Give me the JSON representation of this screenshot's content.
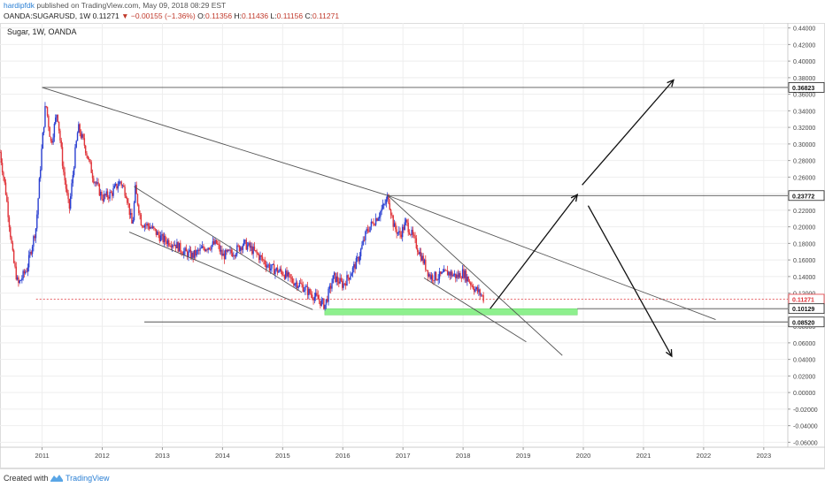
{
  "header": {
    "author": "hardipfdk",
    "published": "published on TradingView.com, May 09, 2018 08:29 EST",
    "symbol": "OANDA:SUGARUSD, 1W",
    "last": "0.11271",
    "change": "−0.00155 (−1.36%)",
    "o_label": "O:",
    "o_value": "0.11356",
    "h_label": "H:",
    "h_value": "0.11436",
    "l_label": "L:",
    "l_value": "0.11156",
    "c_label": "C:",
    "c_value": "0.11271"
  },
  "footer": {
    "created": "Created with",
    "brand": "TradingView"
  },
  "colors": {
    "up": "#2a3fd1",
    "down": "#e0343a",
    "grid": "#eeeeee",
    "zone": "#8ef08e",
    "price_line": "#e0343a"
  },
  "chart_data": {
    "type": "candlestick",
    "title": "Sugar, 1W, OANDA",
    "x_ticks": [
      "2011",
      "2012",
      "2013",
      "2014",
      "2015",
      "2016",
      "2017",
      "2018",
      "2019",
      "2020",
      "2021",
      "2022",
      "2023"
    ],
    "y_ticks": [
      "0.44000",
      "0.42000",
      "0.40000",
      "0.38000",
      "0.36000",
      "0.34000",
      "0.32000",
      "0.30000",
      "0.28000",
      "0.26000",
      "0.24000",
      "0.22000",
      "0.20000",
      "0.18000",
      "0.16000",
      "0.14000",
      "0.12000",
      "0.10000",
      "0.08000",
      "0.06000",
      "0.04000",
      "0.02000",
      "0.00000",
      "-0.02000",
      "-0.04000",
      "-0.06000"
    ],
    "ylim": [
      -0.066,
      0.446
    ],
    "xlim": [
      2010.3,
      2023.4
    ],
    "price_labels": [
      "0.36823",
      "0.23772",
      "0.11271",
      "0.10129",
      "0.08520"
    ],
    "price_levels": [
      0.36823,
      0.23772,
      0.11271,
      0.10129,
      0.0852
    ],
    "current_price": 0.11271,
    "price_path": [
      [
        2010.3,
        0.29
      ],
      [
        2010.4,
        0.24
      ],
      [
        2010.52,
        0.16
      ],
      [
        2010.6,
        0.13
      ],
      [
        2010.75,
        0.15
      ],
      [
        2010.9,
        0.2
      ],
      [
        2011.0,
        0.3
      ],
      [
        2011.06,
        0.35
      ],
      [
        2011.15,
        0.3
      ],
      [
        2011.25,
        0.34
      ],
      [
        2011.35,
        0.27
      ],
      [
        2011.45,
        0.22
      ],
      [
        2011.55,
        0.29
      ],
      [
        2011.6,
        0.32
      ],
      [
        2011.7,
        0.3
      ],
      [
        2011.85,
        0.26
      ],
      [
        2012.0,
        0.235
      ],
      [
        2012.15,
        0.24
      ],
      [
        2012.3,
        0.255
      ],
      [
        2012.4,
        0.24
      ],
      [
        2012.5,
        0.2
      ],
      [
        2012.55,
        0.245
      ],
      [
        2012.65,
        0.205
      ],
      [
        2012.8,
        0.2
      ],
      [
        2013.0,
        0.185
      ],
      [
        2013.2,
        0.18
      ],
      [
        2013.35,
        0.17
      ],
      [
        2013.5,
        0.165
      ],
      [
        2013.7,
        0.175
      ],
      [
        2013.9,
        0.18
      ],
      [
        2014.0,
        0.165
      ],
      [
        2014.2,
        0.17
      ],
      [
        2014.35,
        0.18
      ],
      [
        2014.45,
        0.175
      ],
      [
        2014.6,
        0.165
      ],
      [
        2014.8,
        0.15
      ],
      [
        2015.0,
        0.145
      ],
      [
        2015.15,
        0.135
      ],
      [
        2015.3,
        0.13
      ],
      [
        2015.45,
        0.12
      ],
      [
        2015.55,
        0.115
      ],
      [
        2015.7,
        0.105
      ],
      [
        2015.85,
        0.14
      ],
      [
        2016.0,
        0.13
      ],
      [
        2016.1,
        0.14
      ],
      [
        2016.25,
        0.16
      ],
      [
        2016.4,
        0.195
      ],
      [
        2016.5,
        0.205
      ],
      [
        2016.6,
        0.215
      ],
      [
        2016.72,
        0.23
      ],
      [
        2016.75,
        0.2377
      ],
      [
        2016.85,
        0.2
      ],
      [
        2016.95,
        0.19
      ],
      [
        2017.05,
        0.205
      ],
      [
        2017.15,
        0.19
      ],
      [
        2017.3,
        0.165
      ],
      [
        2017.45,
        0.14
      ],
      [
        2017.6,
        0.14
      ],
      [
        2017.75,
        0.145
      ],
      [
        2017.9,
        0.14
      ],
      [
        2018.0,
        0.145
      ],
      [
        2018.1,
        0.135
      ],
      [
        2018.2,
        0.125
      ],
      [
        2018.3,
        0.118
      ],
      [
        2018.35,
        0.1127
      ]
    ],
    "support_zone": {
      "x": [
        2015.7,
        2019.9
      ],
      "y": [
        0.0936,
        0.1012
      ]
    },
    "lines": [
      {
        "x1": 2011.0,
        "y1": 0.36823,
        "x2": 2023.4,
        "y2": 0.36823
      },
      {
        "x1": 2016.75,
        "y1": 0.23772,
        "x2": 2023.4,
        "y2": 0.23772
      },
      {
        "x1": 2010.9,
        "y1": 0.1127,
        "x2": 2023.4,
        "y2": 0.1127,
        "dashed": true
      },
      {
        "x1": 2019.9,
        "y1": 0.10129,
        "x2": 2023.4,
        "y2": 0.10129
      },
      {
        "x1": 2012.7,
        "y1": 0.0852,
        "x2": 2023.4,
        "y2": 0.0852
      },
      {
        "x1": 2011.0,
        "y1": 0.36823,
        "x2": 2016.75,
        "y2": 0.23772
      },
      {
        "x1": 2016.75,
        "y1": 0.23772,
        "x2": 2022.2,
        "y2": 0.0881
      },
      {
        "x1": 2012.53,
        "y1": 0.2485,
        "x2": 2015.32,
        "y2": 0.1208
      },
      {
        "x1": 2012.45,
        "y1": 0.1937,
        "x2": 2015.5,
        "y2": 0.1001
      },
      {
        "x1": 2016.75,
        "y1": 0.23772,
        "x2": 2019.65,
        "y2": 0.0448
      },
      {
        "x1": 2017.35,
        "y1": 0.1384,
        "x2": 2019.05,
        "y2": 0.0612
      }
    ],
    "arrows": [
      {
        "x1": 2018.45,
        "y1": 0.1012,
        "x2": 2019.9,
        "y2": 0.2388
      },
      {
        "x1": 2019.98,
        "y1": 0.2505,
        "x2": 2021.5,
        "y2": 0.3772
      },
      {
        "x1": 2020.08,
        "y1": 0.2255,
        "x2": 2021.47,
        "y2": 0.0438
      }
    ]
  }
}
